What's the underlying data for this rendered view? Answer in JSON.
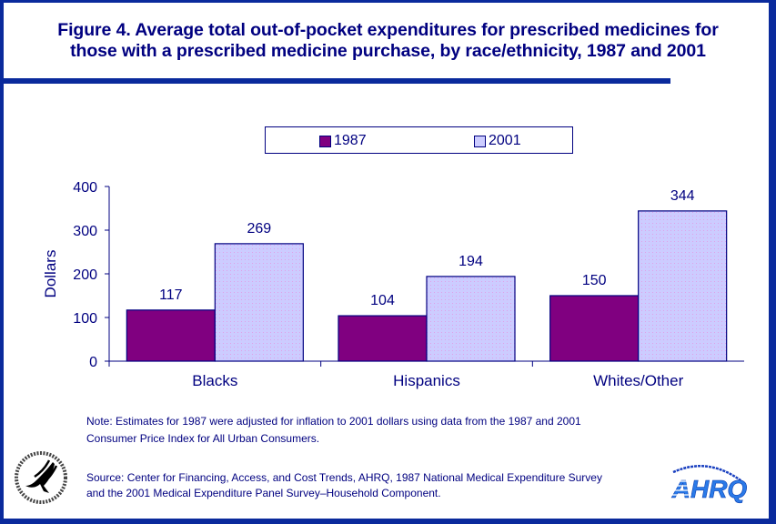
{
  "title_lines": [
    "Figure 4. Average total out-of-pocket expenditures for prescribed medicines for",
    "those with a prescribed medicine purchase, by race/ethnicity, 1987 and 2001"
  ],
  "colors": {
    "frame": "#0a2a9c",
    "text": "#000080",
    "series_1987": "#800080",
    "series_2001": "#ccccff"
  },
  "chart_data": {
    "type": "bar",
    "title": "Figure 4. Average total out-of-pocket expenditures for prescribed medicines for those with a prescribed medicine purchase, by race/ethnicity, 1987 and 2001",
    "categories": [
      "Blacks",
      "Hispanics",
      "Whites/Other"
    ],
    "series": [
      {
        "name": "1987",
        "values": [
          117,
          104,
          150
        ]
      },
      {
        "name": "2001",
        "values": [
          269,
          194,
          344
        ]
      }
    ],
    "xlabel": "",
    "ylabel": "Dollars",
    "ylim": [
      0,
      400
    ],
    "yticks": [
      0,
      100,
      200,
      300,
      400
    ],
    "grid": false,
    "legend_position": "top-center",
    "data_labels": true
  },
  "legend": [
    {
      "label": "1987"
    },
    {
      "label": "2001"
    }
  ],
  "note": [
    "Note: Estimates for 1987 were adjusted for inflation to 2001 dollars using data from the 1987 and 2001",
    "Consumer Price Index for All Urban Consumers."
  ],
  "source": [
    "Source: Center for Financing, Access, and Cost Trends, AHRQ, 1987 National Medical Expenditure Survey",
    "and the 2001 Medical Expenditure Panel Survey–Household Component."
  ],
  "logos": {
    "left": "hhs-seal-icon",
    "right_text": "AHRQ"
  }
}
